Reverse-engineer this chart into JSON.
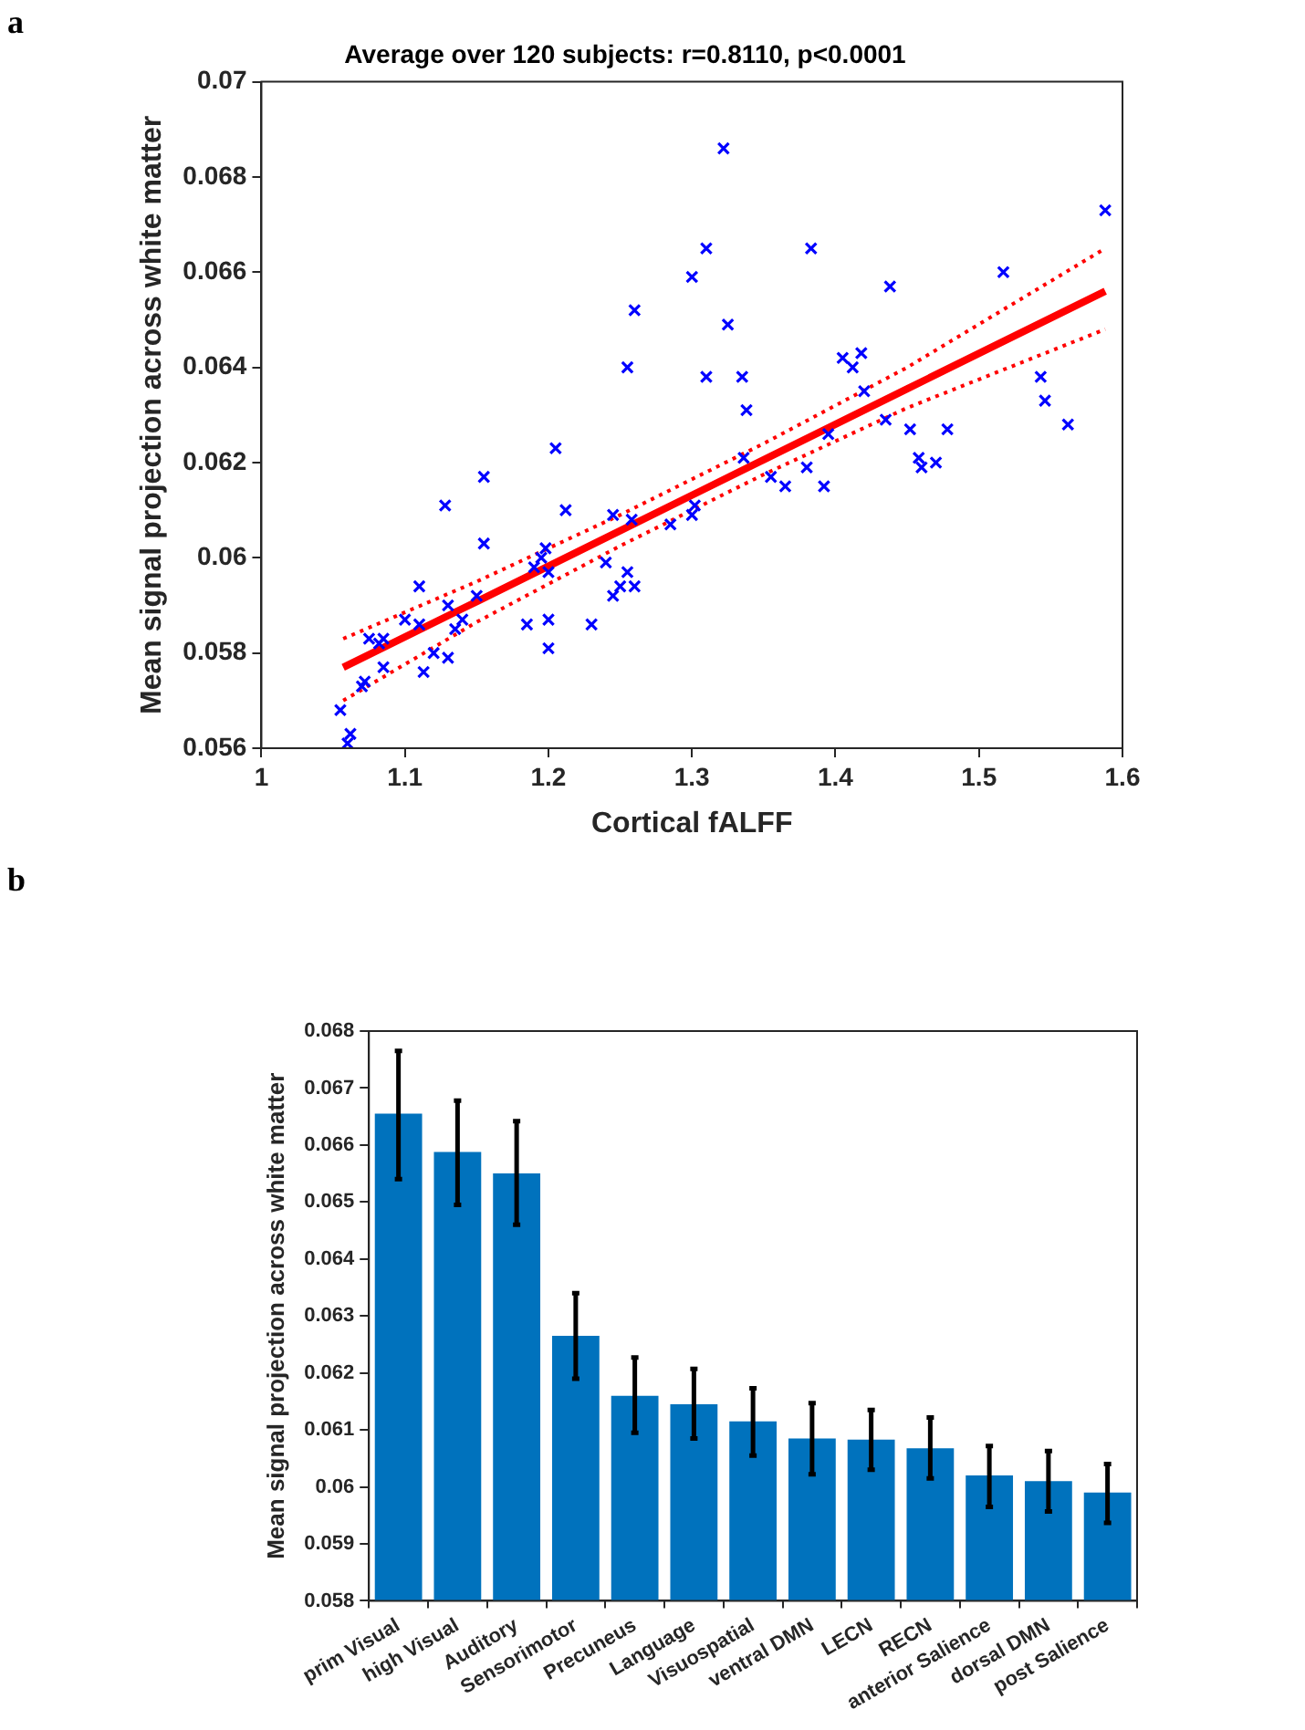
{
  "chart_data": [
    {
      "type": "scatter",
      "title": "Average over 120 subjects: r=0.8110, p<0.0001",
      "xlabel": "Cortical fALFF",
      "ylabel": "Mean signal projection across white matter",
      "annotations": [
        "a"
      ],
      "xlim": [
        1,
        1.6
      ],
      "xticks": [
        1,
        1.1,
        1.2,
        1.3,
        1.4,
        1.5,
        1.6
      ],
      "ylim": [
        0.056,
        0.07
      ],
      "yticks": [
        0.056,
        0.058,
        0.06,
        0.062,
        0.064,
        0.066,
        0.068,
        0.07
      ],
      "marker": "cross",
      "series": [
        {
          "type": "scatter",
          "color": "#0000ff",
          "x": [
            1.055,
            1.06,
            1.062,
            1.07,
            1.072,
            1.075,
            1.082,
            1.085,
            1.085,
            1.1,
            1.11,
            1.11,
            1.113,
            1.12,
            1.128,
            1.13,
            1.13,
            1.135,
            1.14,
            1.15,
            1.155,
            1.155,
            1.185,
            1.19,
            1.195,
            1.198,
            1.2,
            1.2,
            1.2,
            1.205,
            1.212,
            1.23,
            1.24,
            1.245,
            1.245,
            1.25,
            1.255,
            1.258,
            1.26,
            1.255,
            1.26,
            1.285,
            1.3,
            1.302,
            1.3,
            1.31,
            1.31,
            1.322,
            1.325,
            1.335,
            1.336,
            1.338,
            1.355,
            1.365,
            1.38,
            1.383,
            1.392,
            1.395,
            1.405,
            1.412,
            1.418,
            1.42,
            1.435,
            1.438,
            1.452,
            1.458,
            1.46,
            1.47,
            1.478,
            1.517,
            1.543,
            1.546,
            1.562,
            1.588
          ],
          "values": [
            0.0568,
            0.0561,
            0.0563,
            0.0573,
            0.0574,
            0.0583,
            0.0582,
            0.0583,
            0.0577,
            0.0587,
            0.0594,
            0.0586,
            0.0576,
            0.058,
            0.0611,
            0.0579,
            0.059,
            0.0585,
            0.0587,
            0.0592,
            0.0617,
            0.0603,
            0.0586,
            0.0598,
            0.06,
            0.0602,
            0.0587,
            0.0597,
            0.0581,
            0.0623,
            0.061,
            0.0586,
            0.0599,
            0.0609,
            0.0592,
            0.0594,
            0.0597,
            0.0608,
            0.0594,
            0.064,
            0.0652,
            0.0607,
            0.0609,
            0.0611,
            0.0659,
            0.0665,
            0.0638,
            0.0686,
            0.0649,
            0.0638,
            0.0621,
            0.0631,
            0.0617,
            0.0615,
            0.0619,
            0.0665,
            0.0615,
            0.0626,
            0.0642,
            0.064,
            0.0643,
            0.0635,
            0.0629,
            0.0657,
            0.0627,
            0.0621,
            0.0619,
            0.062,
            0.0627,
            0.066,
            0.0638,
            0.0633,
            0.0628,
            0.0673
          ]
        },
        {
          "type": "line",
          "color": "#ff0000",
          "marker": "none",
          "line_style": "solid",
          "x": [
            1.057,
            1.15,
            1.25,
            1.35,
            1.45,
            1.588
          ],
          "values": [
            0.0577,
            0.05908,
            0.06057,
            0.06206,
            0.06355,
            0.0656
          ]
        },
        {
          "type": "line",
          "color": "#ff0000",
          "marker": "none",
          "line_style": "dotted",
          "x": [
            1.057,
            1.15,
            1.25,
            1.35,
            1.45,
            1.588
          ],
          "values": [
            0.057,
            0.05865,
            0.06025,
            0.06175,
            0.06315,
            0.0648
          ]
        },
        {
          "type": "line",
          "color": "#ff0000",
          "marker": "none",
          "line_style": "dotted",
          "x": [
            1.057,
            1.15,
            1.25,
            1.35,
            1.45,
            1.588
          ],
          "values": [
            0.0583,
            0.0595,
            0.0609,
            0.0624,
            0.064,
            0.0665
          ]
        }
      ]
    },
    {
      "type": "bar",
      "ylabel": "Mean signal projection across white matter",
      "annotations": [
        "b"
      ],
      "categories": [
        "prim Visual",
        "high Visual",
        "Auditory",
        "Sensorimotor",
        "Precuneus",
        "Language",
        "Visuospatial",
        "ventral DMN",
        "LECN",
        "RECN",
        "anterior Salience",
        "dorsal DMN",
        "post Salience"
      ],
      "values": [
        0.06655,
        0.06588,
        0.0655,
        0.06265,
        0.0616,
        0.06145,
        0.06115,
        0.06085,
        0.06083,
        0.06068,
        0.0602,
        0.0601,
        0.0599
      ],
      "errors": [
        [
          0.0654,
          0.06765
        ],
        [
          0.06495,
          0.06678
        ],
        [
          0.0646,
          0.06642
        ],
        [
          0.0619,
          0.0634
        ],
        [
          0.06095,
          0.06227
        ],
        [
          0.06085,
          0.06207
        ],
        [
          0.06055,
          0.06173
        ],
        [
          0.06022,
          0.06147
        ],
        [
          0.0603,
          0.06135
        ],
        [
          0.06015,
          0.06122
        ],
        [
          0.05965,
          0.06072
        ],
        [
          0.05957,
          0.06063
        ],
        [
          0.05937,
          0.0604
        ]
      ],
      "color": "#0072bd",
      "ylim": [
        0.058,
        0.068
      ],
      "yticks": [
        0.058,
        0.059,
        0.06,
        0.061,
        0.062,
        0.063,
        0.064,
        0.065,
        0.066,
        0.067,
        0.068
      ]
    }
  ]
}
